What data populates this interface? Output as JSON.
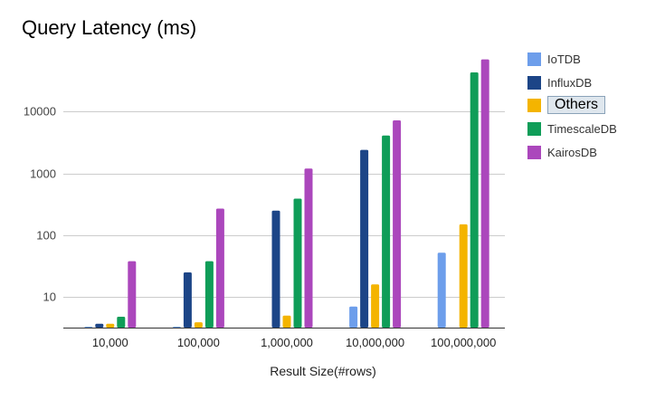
{
  "chart_data": {
    "type": "bar",
    "title": "Query Latency (ms)",
    "xlabel": "Result Size(#rows)",
    "ylabel": "",
    "yscale": "log",
    "ylim": [
      3.2,
      100000
    ],
    "yticks": [
      10,
      100,
      1000,
      10000
    ],
    "ytick_labels": [
      "10",
      "100",
      "1000",
      "10000"
    ],
    "grid": true,
    "legend_position": "right",
    "categories": [
      "10,000",
      "100,000",
      "1,000,000",
      "10,000,000",
      "100,000,000"
    ],
    "series": [
      {
        "name": "IoTDB",
        "color": "#6d9eeb",
        "values": [
          3.3,
          3.3,
          null,
          7,
          52
        ]
      },
      {
        "name": "InfluxDB",
        "color": "#1c4587",
        "values": [
          3.7,
          25,
          250,
          2400,
          null
        ]
      },
      {
        "name": "Others",
        "color": "#f4b400",
        "values": [
          3.7,
          3.9,
          5,
          16,
          150
        ]
      },
      {
        "name": "TimescaleDB",
        "color": "#0f9d58",
        "values": [
          4.8,
          38,
          390,
          4100,
          43000
        ]
      },
      {
        "name": "KairosDB",
        "color": "#ab47bc",
        "values": [
          38,
          270,
          1200,
          7200,
          70000
        ]
      }
    ]
  }
}
